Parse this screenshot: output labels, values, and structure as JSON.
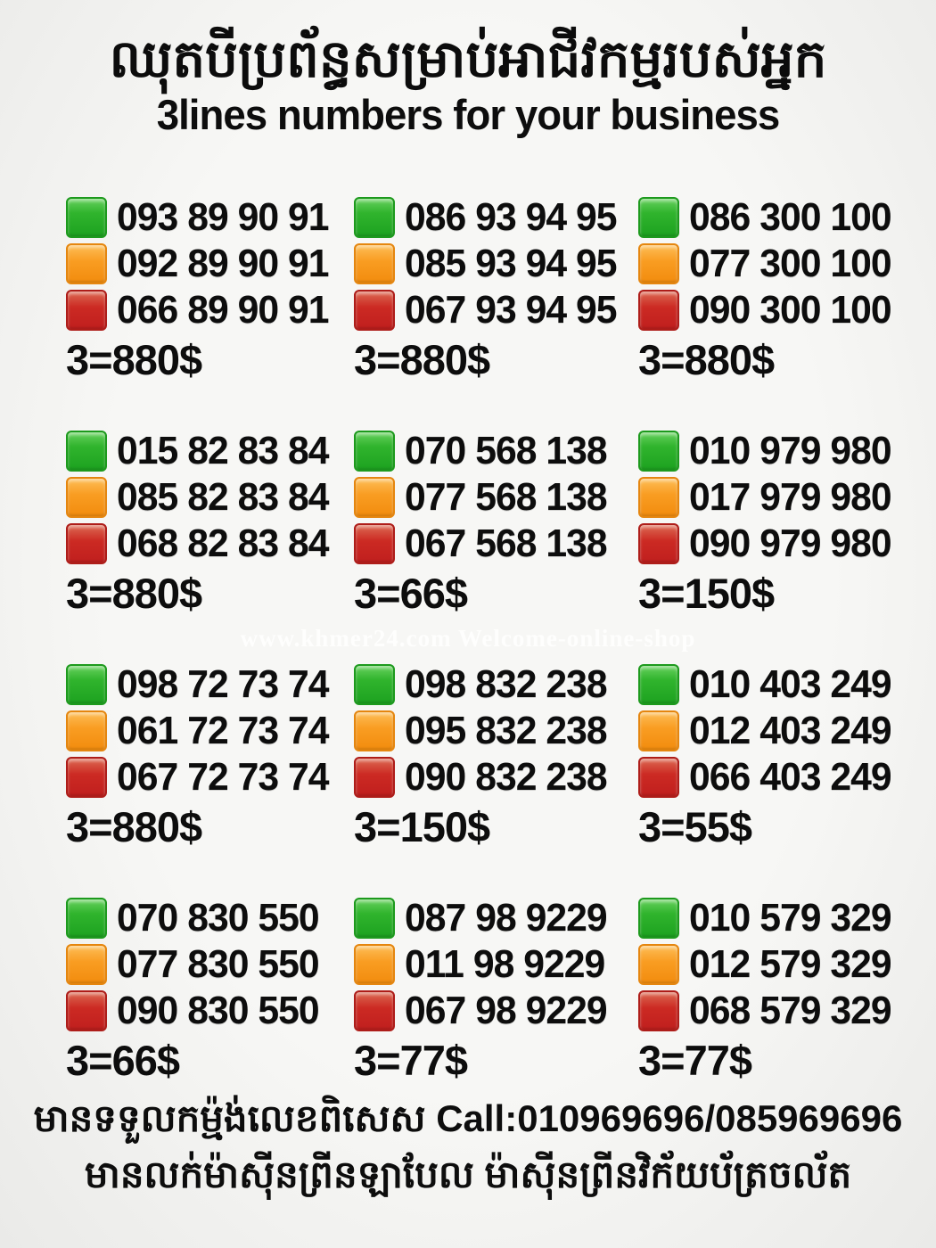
{
  "header": {
    "title_khmer": "ឈុតបីប្រព័ន្ធសម្រាប់អាជីវកម្មរបស់អ្នក",
    "title_english": "3lines numbers for your business"
  },
  "watermark": "www.khmer24.com Welcome-online-shop",
  "colors": {
    "green": "#30b42d",
    "orange": "#f99d22",
    "red": "#cc2a23",
    "text": "#0d0d0d",
    "background": "#f4f4f2"
  },
  "legend": {
    "green_icon": "green-sim-square",
    "orange_icon": "orange-sim-square",
    "red_icon": "red-sim-square"
  },
  "groups": [
    {
      "lines": [
        {
          "color": "green",
          "number": "093 89 90 91"
        },
        {
          "color": "orange",
          "number": "092 89 90 91"
        },
        {
          "color": "red",
          "number": "066 89 90 91"
        }
      ],
      "price": "3=880$"
    },
    {
      "lines": [
        {
          "color": "green",
          "number": "086 93 94 95"
        },
        {
          "color": "orange",
          "number": "085 93 94 95"
        },
        {
          "color": "red",
          "number": "067 93 94 95"
        }
      ],
      "price": "3=880$"
    },
    {
      "lines": [
        {
          "color": "green",
          "number": "086 300 100"
        },
        {
          "color": "orange",
          "number": "077 300 100"
        },
        {
          "color": "red",
          "number": "090 300 100"
        }
      ],
      "price": "3=880$"
    },
    {
      "lines": [
        {
          "color": "green",
          "number": "015 82 83 84"
        },
        {
          "color": "orange",
          "number": "085 82 83 84"
        },
        {
          "color": "red",
          "number": "068 82 83 84"
        }
      ],
      "price": "3=880$"
    },
    {
      "lines": [
        {
          "color": "green",
          "number": "070 568 138"
        },
        {
          "color": "orange",
          "number": "077 568 138"
        },
        {
          "color": "red",
          "number": "067 568 138"
        }
      ],
      "price": "3=66$"
    },
    {
      "lines": [
        {
          "color": "green",
          "number": "010 979 980"
        },
        {
          "color": "orange",
          "number": "017 979 980"
        },
        {
          "color": "red",
          "number": "090 979 980"
        }
      ],
      "price": "3=150$"
    },
    {
      "lines": [
        {
          "color": "green",
          "number": "098 72 73 74"
        },
        {
          "color": "orange",
          "number": "061 72 73 74"
        },
        {
          "color": "red",
          "number": "067 72 73 74"
        }
      ],
      "price": "3=880$"
    },
    {
      "lines": [
        {
          "color": "green",
          "number": "098 832 238"
        },
        {
          "color": "orange",
          "number": "095 832 238"
        },
        {
          "color": "red",
          "number": "090 832 238"
        }
      ],
      "price": "3=150$"
    },
    {
      "lines": [
        {
          "color": "green",
          "number": "010 403 249"
        },
        {
          "color": "orange",
          "number": "012 403 249"
        },
        {
          "color": "red",
          "number": "066 403 249"
        }
      ],
      "price": "3=55$"
    },
    {
      "lines": [
        {
          "color": "green",
          "number": "070 830 550"
        },
        {
          "color": "orange",
          "number": "077 830 550"
        },
        {
          "color": "red",
          "number": "090 830 550"
        }
      ],
      "price": "3=66$"
    },
    {
      "lines": [
        {
          "color": "green",
          "number": "087 98 9229"
        },
        {
          "color": "orange",
          "number": "011 98 9229"
        },
        {
          "color": "red",
          "number": "067 98 9229"
        }
      ],
      "price": "3=77$"
    },
    {
      "lines": [
        {
          "color": "green",
          "number": "010 579 329"
        },
        {
          "color": "orange",
          "number": "012 579 329"
        },
        {
          "color": "red",
          "number": "068 579 329"
        }
      ],
      "price": "3=77$"
    }
  ],
  "footer": {
    "line1": "មានទទួលកម្ម៉ង់លេខពិសេស Call:010969696/085969696",
    "line2": "មានលក់ម៉ាស៊ីនព្រីនឡាបែល ម៉ាស៊ីនព្រីនវិក័យប័ត្រចល័ត"
  }
}
